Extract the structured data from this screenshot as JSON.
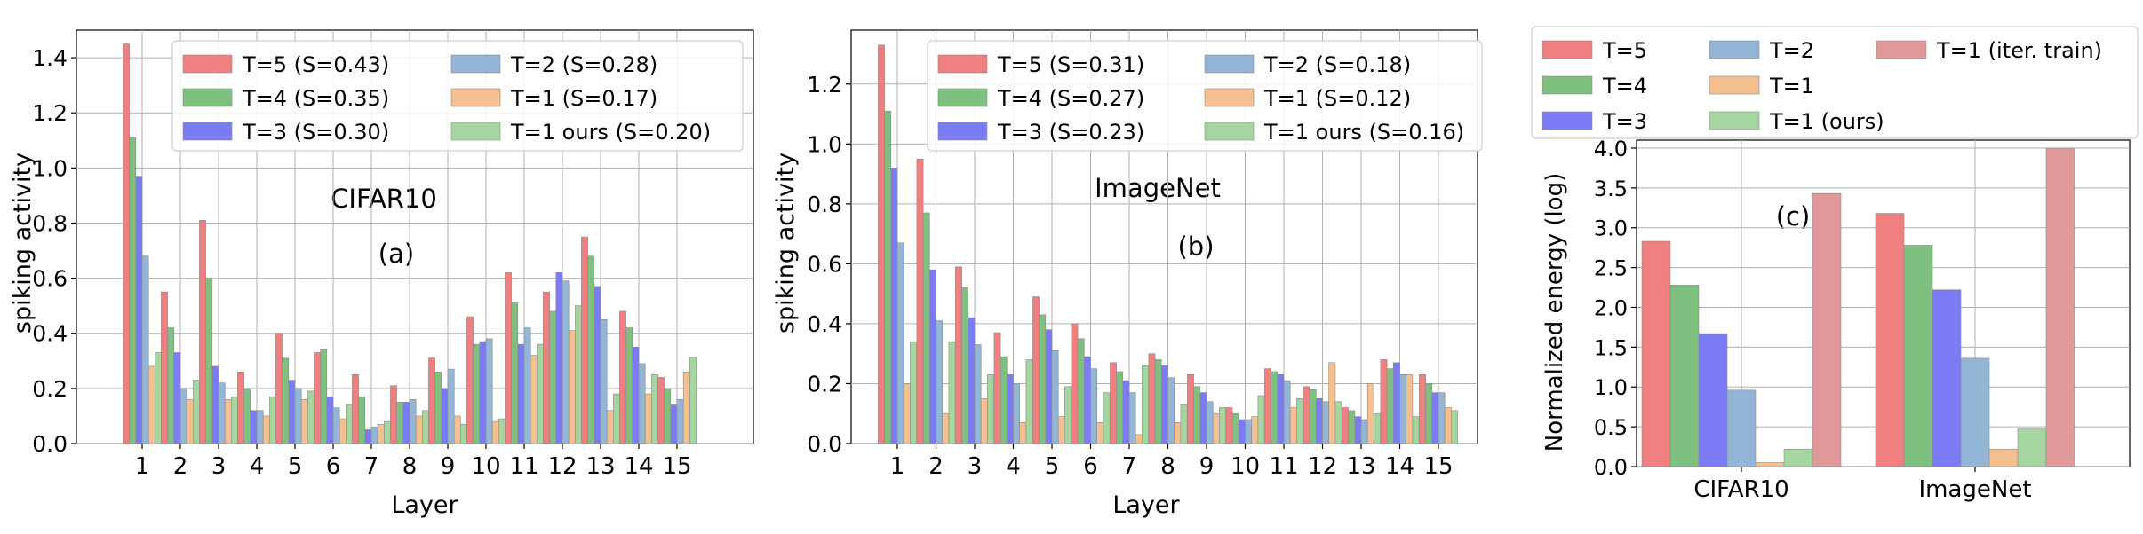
{
  "chart_data": [
    {
      "type": "bar",
      "id": "a",
      "annotation_title": "CIFAR10",
      "annotation_label": "(a)",
      "xlabel": "Layer",
      "ylabel": "spiking activity",
      "categories": [
        "1",
        "2",
        "3",
        "4",
        "5",
        "6",
        "7",
        "8",
        "9",
        "10",
        "11",
        "12",
        "13",
        "14",
        "15"
      ],
      "ylim": [
        0,
        1.5
      ],
      "yticks": [
        "0.0",
        "0.2",
        "0.4",
        "0.6",
        "0.8",
        "1.0",
        "1.2",
        "1.4"
      ],
      "grid": true,
      "legend_position": "top-right",
      "series": [
        {
          "name": "T=5 (S=0.43)",
          "values": [
            1.45,
            0.55,
            0.81,
            0.26,
            0.4,
            0.33,
            0.25,
            0.21,
            0.31,
            0.46,
            0.62,
            0.55,
            0.75,
            0.48,
            0.24
          ]
        },
        {
          "name": "T=4 (S=0.35)",
          "values": [
            1.11,
            0.42,
            0.6,
            0.2,
            0.31,
            0.34,
            0.17,
            0.15,
            0.26,
            0.36,
            0.51,
            0.48,
            0.68,
            0.42,
            0.2
          ]
        },
        {
          "name": "T=3 (S=0.30)",
          "values": [
            0.97,
            0.33,
            0.28,
            0.12,
            0.23,
            0.17,
            0.05,
            0.15,
            0.2,
            0.37,
            0.36,
            0.62,
            0.57,
            0.35,
            0.14
          ]
        },
        {
          "name": "T=2 (S=0.28)",
          "values": [
            0.68,
            0.2,
            0.22,
            0.12,
            0.2,
            0.13,
            0.06,
            0.16,
            0.27,
            0.38,
            0.42,
            0.59,
            0.45,
            0.29,
            0.16
          ]
        },
        {
          "name": "T=1 (S=0.17)",
          "values": [
            0.28,
            0.16,
            0.16,
            0.1,
            0.16,
            0.09,
            0.07,
            0.1,
            0.1,
            0.08,
            0.32,
            0.41,
            0.12,
            0.18,
            0.26
          ]
        },
        {
          "name": "T=1 ours (S=0.20)",
          "values": [
            0.33,
            0.23,
            0.17,
            0.17,
            0.19,
            0.14,
            0.08,
            0.12,
            0.07,
            0.09,
            0.36,
            0.5,
            0.18,
            0.25,
            0.31
          ]
        }
      ]
    },
    {
      "type": "bar",
      "id": "b",
      "annotation_title": "ImageNet",
      "annotation_label": "(b)",
      "xlabel": "Layer",
      "ylabel": "spiking activity",
      "categories": [
        "1",
        "2",
        "3",
        "4",
        "5",
        "6",
        "7",
        "8",
        "9",
        "10",
        "11",
        "12",
        "13",
        "14",
        "15"
      ],
      "ylim": [
        0,
        1.38
      ],
      "yticks": [
        "0.0",
        "0.2",
        "0.4",
        "0.6",
        "0.8",
        "1.0",
        "1.2"
      ],
      "grid": true,
      "legend_position": "top-right",
      "series": [
        {
          "name": "T=5 (S=0.31)",
          "values": [
            1.33,
            0.95,
            0.59,
            0.37,
            0.49,
            0.4,
            0.27,
            0.3,
            0.23,
            0.12,
            0.25,
            0.19,
            0.12,
            0.28,
            0.23
          ]
        },
        {
          "name": "T=4 (S=0.27)",
          "values": [
            1.11,
            0.77,
            0.52,
            0.29,
            0.43,
            0.35,
            0.24,
            0.28,
            0.19,
            0.1,
            0.24,
            0.18,
            0.11,
            0.25,
            0.2
          ]
        },
        {
          "name": "T=3 (S=0.23)",
          "values": [
            0.92,
            0.58,
            0.42,
            0.23,
            0.38,
            0.29,
            0.21,
            0.26,
            0.17,
            0.08,
            0.23,
            0.15,
            0.09,
            0.27,
            0.17
          ]
        },
        {
          "name": "T=2 (S=0.18)",
          "values": [
            0.67,
            0.41,
            0.33,
            0.2,
            0.31,
            0.25,
            0.17,
            0.22,
            0.14,
            0.08,
            0.21,
            0.14,
            0.08,
            0.23,
            0.17
          ]
        },
        {
          "name": "T=1 (S=0.12)",
          "values": [
            0.2,
            0.1,
            0.15,
            0.07,
            0.09,
            0.07,
            0.03,
            0.07,
            0.1,
            0.09,
            0.12,
            0.27,
            0.2,
            0.23,
            0.12
          ]
        },
        {
          "name": "T=1 ours (S=0.16)",
          "values": [
            0.34,
            0.34,
            0.23,
            0.28,
            0.19,
            0.17,
            0.26,
            0.13,
            0.12,
            0.16,
            0.15,
            0.14,
            0.1,
            0.09,
            0.11
          ]
        }
      ]
    },
    {
      "type": "bar",
      "id": "c",
      "annotation_label": "(c)",
      "xlabel": "",
      "ylabel": "Normalized energy (log)",
      "categories": [
        "CIFAR10",
        "ImageNet"
      ],
      "ylim": [
        0,
        4.1
      ],
      "yticks": [
        "0.0",
        "0.5",
        "1.0",
        "1.5",
        "2.0",
        "2.5",
        "3.0",
        "3.5",
        "4.0"
      ],
      "grid": true,
      "legend_position": "above",
      "series": [
        {
          "name": "T=5",
          "values": [
            2.83,
            3.18
          ]
        },
        {
          "name": "T=4",
          "values": [
            2.28,
            2.78
          ]
        },
        {
          "name": "T=3",
          "values": [
            1.67,
            2.22
          ]
        },
        {
          "name": "T=2",
          "values": [
            0.96,
            1.36
          ]
        },
        {
          "name": "T=1",
          "values": [
            0.05,
            0.22
          ]
        },
        {
          "name": "T=1 (ours)",
          "values": [
            0.22,
            0.48
          ]
        },
        {
          "name": "T=1 (iter. train)",
          "values": [
            3.43,
            4.0
          ]
        }
      ]
    }
  ],
  "colors": {
    "t5": "#f08080",
    "t4": "#7fbf7f",
    "t3": "#7b7bf5",
    "t2": "#93b5d6",
    "t1": "#f5c08f",
    "t1_ours": "#a6d6a0",
    "t1_iter": "#e09a9a",
    "grid": "#b0b0b0",
    "bar_edge": "#8a8a8a"
  }
}
